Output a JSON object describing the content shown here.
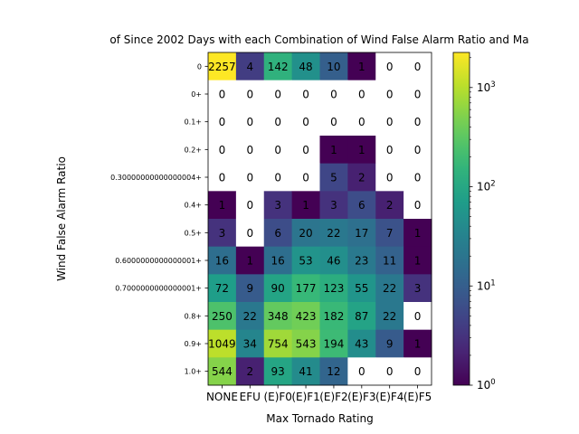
{
  "chart_data": {
    "type": "heatmap",
    "title": "of Since 2002 Days with each Combination of Wind False Alarm Ratio and Ma",
    "xlabel": "Max Tornado Rating",
    "ylabel": "Wind False Alarm Ratio",
    "x_categories": [
      "NONE",
      "EFU",
      "(E)F0",
      "(E)F1",
      "(E)F2",
      "(E)F3",
      "(E)F4",
      "(E)F5"
    ],
    "x_tick_labels_rendered": "NONEEFU(E)F0(E)F1(E)F2(E)F3(E)F4(E)F5",
    "y_categories": [
      "0",
      "0+",
      "0.1+",
      "0.2+",
      "0.30000000000000004+",
      "0.4+",
      "0.5+",
      "0.6000000000000001+",
      "0.7000000000000001+",
      "0.8+",
      "0.9+",
      "1.0+"
    ],
    "values": [
      [
        2257,
        4,
        142,
        48,
        10,
        1,
        0,
        0
      ],
      [
        0,
        0,
        0,
        0,
        0,
        0,
        0,
        0
      ],
      [
        0,
        0,
        0,
        0,
        0,
        0,
        0,
        0
      ],
      [
        0,
        0,
        0,
        0,
        1,
        1,
        0,
        0
      ],
      [
        0,
        0,
        0,
        0,
        5,
        2,
        0,
        0
      ],
      [
        1,
        0,
        3,
        1,
        3,
        6,
        2,
        0
      ],
      [
        3,
        0,
        6,
        20,
        22,
        17,
        7,
        1
      ],
      [
        16,
        1,
        16,
        53,
        46,
        23,
        11,
        1
      ],
      [
        72,
        9,
        90,
        177,
        123,
        55,
        22,
        3
      ],
      [
        250,
        22,
        348,
        423,
        182,
        87,
        22,
        0
      ],
      [
        1049,
        34,
        754,
        543,
        194,
        43,
        9,
        1
      ],
      [
        544,
        2,
        93,
        41,
        12,
        0,
        0,
        0
      ]
    ],
    "colormap": "viridis",
    "color_scale": "log",
    "color_range": [
      1,
      2257
    ],
    "zero_color": "#ffffff",
    "colorbar": {
      "ticks": [
        {
          "value": 1,
          "base": "10",
          "exp": "0"
        },
        {
          "value": 10,
          "base": "10",
          "exp": "1"
        },
        {
          "value": 100,
          "base": "10",
          "exp": "2"
        },
        {
          "value": 1000,
          "base": "10",
          "exp": "3"
        }
      ]
    },
    "grid": false
  }
}
